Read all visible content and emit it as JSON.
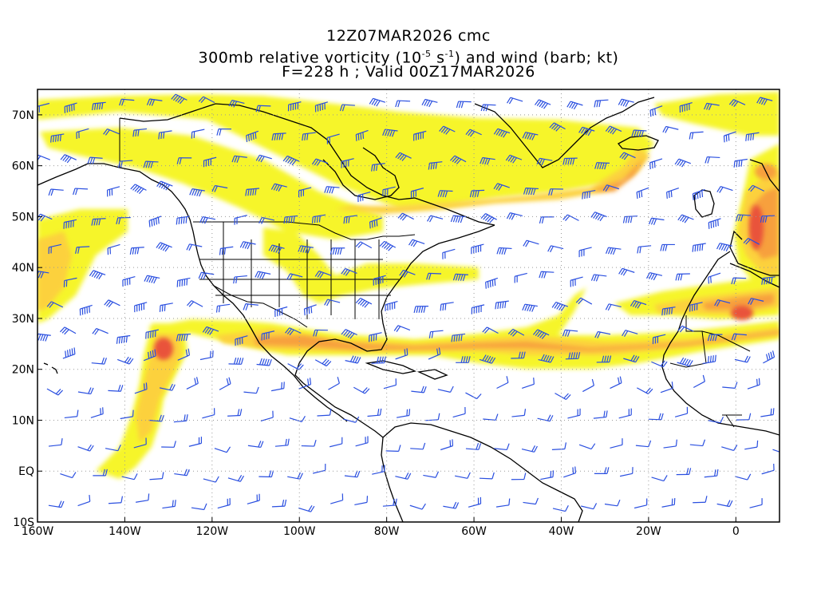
{
  "titles": {
    "line1": "12Z07MAR2026 cmc",
    "line2_prefix": "300mb relative vorticity (10",
    "line2_exp1": "-5",
    "line2_mid": " s",
    "line2_exp2": "-1",
    "line2_suffix": ") and wind (barb; kt)",
    "line3": "F=228 h ; Valid 00Z17MAR2026"
  },
  "axes": {
    "lon_labels": [
      "160W",
      "140W",
      "120W",
      "100W",
      "80W",
      "60W",
      "40W",
      "20W",
      "0"
    ],
    "lon_values": [
      -160,
      -140,
      -120,
      -100,
      -80,
      -60,
      -40,
      -20,
      0
    ],
    "lat_labels": [
      "70N",
      "60N",
      "50N",
      "40N",
      "30N",
      "20N",
      "10N",
      "EQ",
      "10S"
    ],
    "lat_values": [
      70,
      60,
      50,
      40,
      30,
      20,
      10,
      0,
      -10
    ],
    "lon_range": [
      -160,
      10
    ],
    "lat_range": [
      -10,
      75
    ]
  },
  "colors": {
    "shade_low": "#f6f52a",
    "shade_mid": "#fcd13c",
    "shade_high": "#f7a03c",
    "shade_peak": "#e9523a",
    "barb": "#2a4fe0",
    "coast": "#000000",
    "grid": "#9a9a9a"
  },
  "icons": {
    "wind_barb": "wind-barb-icon"
  }
}
